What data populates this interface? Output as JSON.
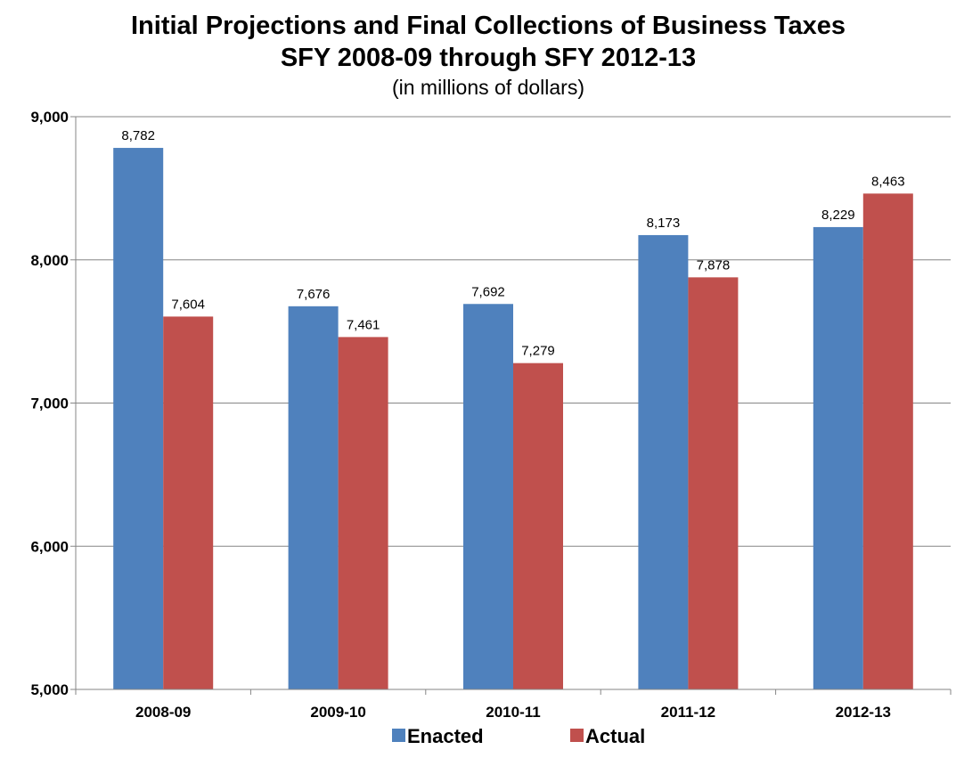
{
  "chart_data": {
    "type": "bar",
    "title": "Initial Projections and Final Collections of Business Taxes",
    "title_line2": "SFY 2008-09 through SFY 2012-13",
    "subtitle": "(in millions of dollars)",
    "categories": [
      "2008-09",
      "2009-10",
      "2010-11",
      "2011-12",
      "2012-13"
    ],
    "series": [
      {
        "name": "Enacted",
        "color": "#4F81BD",
        "values": [
          8782,
          7676,
          7692,
          8173,
          8229
        ],
        "labels": [
          "8,782",
          "7,676",
          "7,692",
          "8,173",
          "8,229"
        ]
      },
      {
        "name": "Actual",
        "color": "#C0504D",
        "values": [
          7604,
          7461,
          7279,
          7878,
          8463
        ],
        "labels": [
          "7,604",
          "7,461",
          "7,279",
          "7,878",
          "8,463"
        ]
      }
    ],
    "ylim": [
      5000,
      9000
    ],
    "yticks": [
      5000,
      6000,
      7000,
      8000,
      9000
    ],
    "ytick_labels": [
      "5,000",
      "6,000",
      "7,000",
      "8,000",
      "9,000"
    ],
    "grid": true,
    "gridline_color": "#868686",
    "legend_position": "bottom"
  }
}
